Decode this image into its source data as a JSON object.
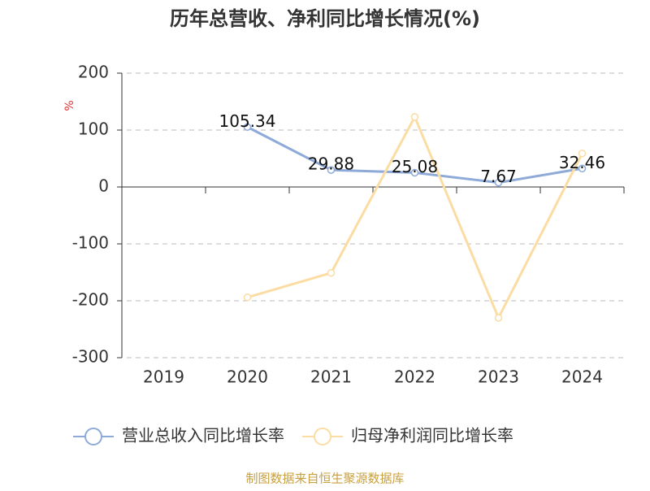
{
  "chart_data": {
    "type": "line",
    "title": "历年总营收、净利同比增长情况(%)",
    "ylabel": "%",
    "categories": [
      "2019",
      "2020",
      "2021",
      "2022",
      "2023",
      "2024"
    ],
    "series": [
      {
        "name": "营业总收入同比增长率",
        "color": "#8eaad8",
        "data_labels": true,
        "values": [
          null,
          105.34,
          29.88,
          25.08,
          7.67,
          32.46
        ]
      },
      {
        "name": "归母净利润同比增长率",
        "color": "#fbdca3",
        "data_labels": false,
        "values": [
          null,
          -194,
          -151,
          123,
          -230,
          59
        ]
      }
    ],
    "ylim": [
      -300,
      200
    ],
    "yticks": [
      -300,
      -200,
      -100,
      0,
      100,
      200
    ],
    "grid": true,
    "source": "制图数据来自恒生聚源数据库"
  }
}
